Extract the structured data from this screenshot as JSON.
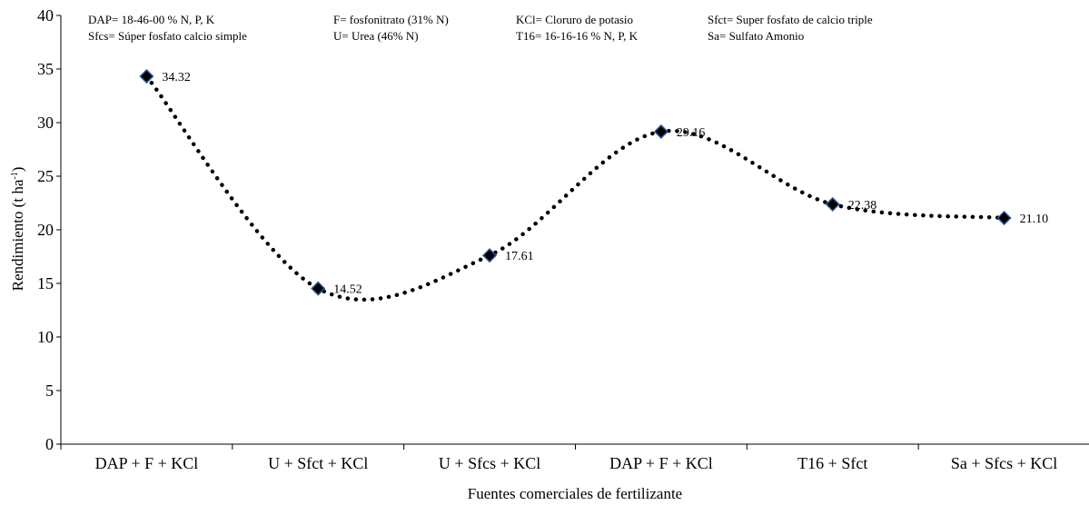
{
  "chart_data": {
    "type": "line",
    "title": "",
    "xlabel": "Fuentes comerciales de fertilizante",
    "ylabel": "Rendimiento (t ha",
    "ylabel_sup": "-1",
    "ylabel_close": ")",
    "ylim": [
      0,
      40
    ],
    "yticks": [
      0,
      5,
      10,
      15,
      20,
      25,
      30,
      35,
      40
    ],
    "categories": [
      "DAP + F + KCl",
      "U + Sfct + KCl",
      "U + Sfcs + KCl",
      "DAP + F + KCl",
      "T16 + Sfct",
      "Sa + Sfcs + KCl"
    ],
    "series": [
      {
        "values": [
          34.32,
          14.52,
          17.61,
          29.16,
          22.38,
          21.1
        ],
        "labels": [
          "34.32",
          "14.52",
          "17.61",
          "29.16",
          "22.38",
          "21.10"
        ],
        "line_style": "dotted smooth",
        "line_color": "#000000",
        "marker": "diamond",
        "marker_fill": "#000000",
        "marker_edge": "#2f5597"
      }
    ],
    "grid": false,
    "legend_notes": [
      [
        "DAP= 18-46-00 % N, P, K",
        "F= fosfonitrato (31% N)",
        "KCl= Cloruro de potasio",
        "Sfct= Super fosfato de calcio triple"
      ],
      [
        "Sfcs= Súper fosfato calcio simple",
        "U= Urea (46% N)",
        "T16= 16-16-16 % N, P, K",
        "Sa= Sulfato Amonio"
      ]
    ]
  }
}
